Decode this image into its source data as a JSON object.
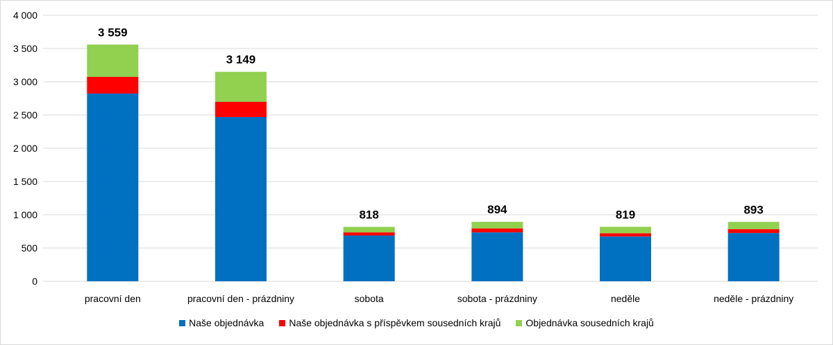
{
  "chart_data": {
    "type": "bar",
    "stacked": true,
    "categories": [
      "pracovní den",
      "pracovní den - prázdniny",
      "sobota",
      "sobota - prázdniny",
      "neděle",
      "neděle - prázdniny"
    ],
    "series": [
      {
        "name": "Naše objednávka",
        "color": "#0070c0",
        "values": [
          2823,
          2469,
          688,
          736,
          674,
          726
        ]
      },
      {
        "name": "Naše objednávka s příspěvkem sousedních krajů",
        "color": "#ff0000",
        "values": [
          250,
          229,
          48,
          59,
          48,
          58
        ]
      },
      {
        "name": "Objednávka sousedních krajů",
        "color": "#92d050",
        "values": [
          486,
          451,
          82,
          99,
          97,
          109
        ]
      }
    ],
    "totals": [
      "3 559",
      "3 149",
      "818",
      "894",
      "819",
      "893"
    ],
    "yticks": [
      "0",
      "500",
      "1 000",
      "1 500",
      "2 000",
      "2 500",
      "3 000",
      "3 500",
      "4 000"
    ],
    "ylim": [
      0,
      4000
    ],
    "grid": true,
    "legend": "bottom"
  }
}
